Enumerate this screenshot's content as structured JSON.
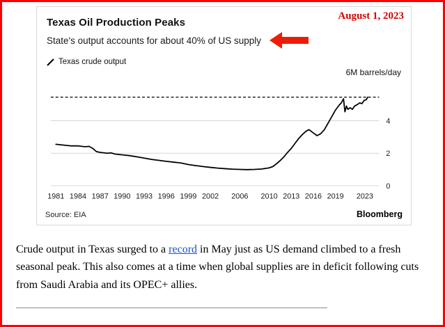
{
  "page": {
    "date": "August 1, 2023"
  },
  "chart_data": {
    "type": "line",
    "title": "Texas Oil Production Peaks",
    "subtitle": "State's output accounts for about 40% of US supply",
    "y_unit_label": "6M barrels/day",
    "source": "Source: EIA",
    "credit": "Bloomberg",
    "xlim": [
      1980.3,
      2024.2
    ],
    "ylim": [
      0,
      6
    ],
    "y_ticks": [
      0,
      2,
      4
    ],
    "x_ticks": [
      1981,
      1984,
      1987,
      1990,
      1993,
      1996,
      1999,
      2002,
      2006,
      2010,
      2013,
      2016,
      2019,
      2023
    ],
    "record_line": 5.45,
    "grid": true,
    "legend_position": "top-left",
    "series": [
      {
        "name": "Texas crude output",
        "points": [
          [
            1981,
            2.55
          ],
          [
            1982,
            2.5
          ],
          [
            1983,
            2.45
          ],
          [
            1984,
            2.45
          ],
          [
            1984.5,
            2.42
          ],
          [
            1985,
            2.4
          ],
          [
            1985.5,
            2.42
          ],
          [
            1986,
            2.3
          ],
          [
            1986.5,
            2.1
          ],
          [
            1987,
            2.05
          ],
          [
            1988,
            2.0
          ],
          [
            1988.5,
            2.02
          ],
          [
            1989,
            1.95
          ],
          [
            1990,
            1.9
          ],
          [
            1991,
            1.85
          ],
          [
            1992,
            1.78
          ],
          [
            1993,
            1.7
          ],
          [
            1994,
            1.62
          ],
          [
            1995,
            1.56
          ],
          [
            1996,
            1.5
          ],
          [
            1997,
            1.45
          ],
          [
            1998,
            1.4
          ],
          [
            1999,
            1.3
          ],
          [
            2000,
            1.24
          ],
          [
            2001,
            1.18
          ],
          [
            2002,
            1.13
          ],
          [
            2003,
            1.08
          ],
          [
            2004,
            1.05
          ],
          [
            2005,
            1.02
          ],
          [
            2006,
            1.0
          ],
          [
            2007,
            0.99
          ],
          [
            2008,
            1.0
          ],
          [
            2009,
            1.03
          ],
          [
            2010,
            1.1
          ],
          [
            2010.5,
            1.18
          ],
          [
            2011,
            1.35
          ],
          [
            2011.5,
            1.55
          ],
          [
            2012,
            1.78
          ],
          [
            2012.5,
            2.05
          ],
          [
            2013,
            2.3
          ],
          [
            2013.5,
            2.6
          ],
          [
            2014,
            2.9
          ],
          [
            2014.5,
            3.15
          ],
          [
            2015,
            3.35
          ],
          [
            2015.4,
            3.45
          ],
          [
            2016,
            3.25
          ],
          [
            2016.5,
            3.08
          ],
          [
            2017,
            3.2
          ],
          [
            2017.5,
            3.45
          ],
          [
            2018,
            3.85
          ],
          [
            2018.5,
            4.25
          ],
          [
            2019,
            4.65
          ],
          [
            2019.5,
            4.95
          ],
          [
            2019.8,
            5.1
          ],
          [
            2020.1,
            5.35
          ],
          [
            2020.3,
            4.55
          ],
          [
            2020.5,
            4.9
          ],
          [
            2020.7,
            4.7
          ],
          [
            2021,
            4.8
          ],
          [
            2021.3,
            4.7
          ],
          [
            2021.6,
            4.9
          ],
          [
            2022,
            5.0
          ],
          [
            2022.3,
            5.1
          ],
          [
            2022.6,
            5.05
          ],
          [
            2022.9,
            5.25
          ],
          [
            2023.2,
            5.3
          ],
          [
            2023.4,
            5.45
          ]
        ]
      }
    ]
  },
  "article": {
    "text_before": "Crude output in Texas surged to a ",
    "link_text": "record",
    "text_after": " in May just as US demand climbed to a fresh seasonal peak. This also comes at a time when global supplies are in deficit following cuts from Saudi Arabia and its OPEC+ allies."
  },
  "colors": {
    "border_red": "#fe0000",
    "date_red": "#d40000",
    "arrow_red": "#ed1c09",
    "line_black": "#000000",
    "grid_gray": "#d6d6d6",
    "link_blue": "#1155cc"
  }
}
